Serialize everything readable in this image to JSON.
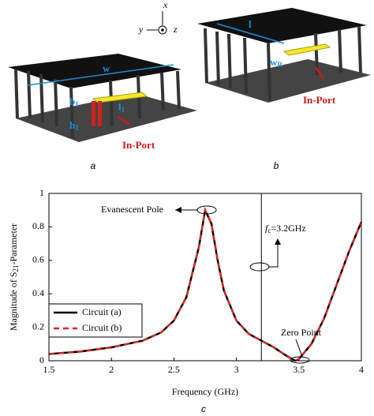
{
  "figure": {
    "axes": {
      "x": "x",
      "y": "y",
      "z": "z"
    },
    "panel_a": {
      "caption": "a",
      "w": "w",
      "b": "b",
      "b_sub": "1",
      "h": "h",
      "h_sub": "1",
      "l": "l",
      "l_sub": "1",
      "port": "In-Port"
    },
    "panel_b": {
      "caption": "b",
      "l": "l",
      "w": "w",
      "w_sub": "R",
      "port": "In-Port"
    }
  },
  "chart_data": {
    "type": "line",
    "caption": "c",
    "xlabel": "Frequency (GHz)",
    "ylabel": {
      "main": "Magnitude of S",
      "sub": "21",
      "rest": "-Parameter"
    },
    "annotations": {
      "pole": "Evanescent Pole",
      "zero": "Zero Point",
      "fc_symbol": "f",
      "fc_sub": "c",
      "fc_value": "=3.2GHz"
    },
    "marker_line_x": 3.2,
    "x": [
      1.5,
      1.75,
      2,
      2.25,
      2.4,
      2.5,
      2.6,
      2.7,
      2.75,
      2.8,
      2.85,
      2.9,
      3.0,
      3.1,
      3.2,
      3.3,
      3.4,
      3.47,
      3.5,
      3.6,
      3.7,
      3.8,
      3.9,
      4.0
    ],
    "series": [
      {
        "name": "Circuit (a)",
        "color": "#000000",
        "values": [
          0.04,
          0.055,
          0.08,
          0.12,
          0.17,
          0.24,
          0.38,
          0.68,
          0.9,
          0.82,
          0.6,
          0.42,
          0.24,
          0.16,
          0.12,
          0.08,
          0.03,
          0.0,
          0.01,
          0.1,
          0.25,
          0.45,
          0.65,
          0.83
        ]
      },
      {
        "name": "Circuit (b)",
        "color": "#e8211b",
        "values": [
          0.04,
          0.055,
          0.08,
          0.12,
          0.17,
          0.24,
          0.38,
          0.68,
          0.9,
          0.82,
          0.6,
          0.42,
          0.24,
          0.16,
          0.12,
          0.08,
          0.03,
          0.0,
          0.01,
          0.1,
          0.25,
          0.45,
          0.65,
          0.83
        ]
      }
    ],
    "xlim": [
      1.5,
      4
    ],
    "xticks": [
      1.5,
      2,
      2.5,
      3,
      3.5,
      4
    ],
    "ylim": [
      0,
      1
    ],
    "yticks": [
      0,
      0.2,
      0.4,
      0.6,
      0.8,
      1
    ],
    "legend": "lower-left"
  }
}
